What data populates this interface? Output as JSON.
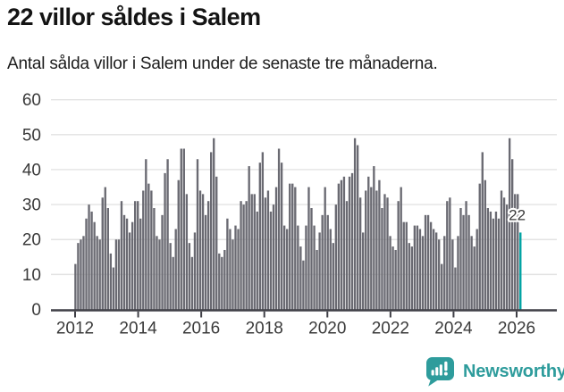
{
  "header": {
    "title": "22 villor såldes i Salem",
    "subtitle": "Antal sålda villor i Salem under de senaste tre månaderna."
  },
  "chart_data": {
    "type": "bar",
    "title": "22 villor såldes i Salem",
    "subtitle": "Antal sålda villor i Salem under de senaste tre månaderna.",
    "x_unit": "month",
    "x_start": "2012-01",
    "x_tick_labels": [
      "2012",
      "2014",
      "2016",
      "2018",
      "2020",
      "2022",
      "2024",
      "2026"
    ],
    "y_tick_labels": [
      "0",
      "10",
      "20",
      "30",
      "40",
      "50",
      "60"
    ],
    "y_ticks": [
      0,
      10,
      20,
      30,
      40,
      50,
      60
    ],
    "ylim": [
      0,
      60
    ],
    "grid": true,
    "legend": "none",
    "values": [
      13,
      19,
      20,
      21,
      26,
      30,
      28,
      25,
      21,
      20,
      32,
      35,
      29,
      16,
      12,
      20,
      20,
      31,
      27,
      26,
      22,
      25,
      31,
      31,
      26,
      34,
      43,
      36,
      34,
      29,
      21,
      20,
      27,
      39,
      43,
      19,
      15,
      23,
      37,
      46,
      46,
      33,
      19,
      15,
      22,
      43,
      34,
      33,
      27,
      31,
      45,
      49,
      38,
      16,
      15,
      17,
      26,
      23,
      20,
      24,
      23,
      31,
      30,
      31,
      41,
      33,
      33,
      28,
      42,
      45,
      32,
      34,
      28,
      30,
      35,
      46,
      42,
      24,
      23,
      36,
      36,
      35,
      24,
      18,
      14,
      24,
      35,
      29,
      24,
      17,
      22,
      27,
      35,
      27,
      23,
      19,
      30,
      36,
      37,
      38,
      31,
      38,
      39,
      49,
      47,
      32,
      22,
      34,
      38,
      35,
      41,
      34,
      37,
      29,
      33,
      32,
      21,
      18,
      17,
      31,
      35,
      25,
      25,
      19,
      18,
      24,
      24,
      23,
      21,
      27,
      27,
      25,
      23,
      22,
      20,
      13,
      21,
      31,
      32,
      20,
      12,
      21,
      29,
      27,
      31,
      27,
      21,
      18,
      23,
      36,
      45,
      37,
      29,
      28,
      26,
      28,
      26,
      34,
      32,
      30,
      49,
      43,
      33,
      33,
      22
    ],
    "highlight": {
      "last_bar": true,
      "value": 22,
      "annotation": "22"
    },
    "colors": {
      "bar": "#6A6A72",
      "highlight": "#00A2A2",
      "grid": "#E3E3E3",
      "axis_line": "#3F3F46",
      "axis_text": "#3A3A3A",
      "annotation_text": "#3A3A3A",
      "annotation_halo": "#FFFFFF"
    }
  },
  "footer": {
    "brand": "Newsworthy",
    "brand_color": "#2E9C9C",
    "logo_icon": "speech-bubble-bar-chart-exclamation"
  }
}
